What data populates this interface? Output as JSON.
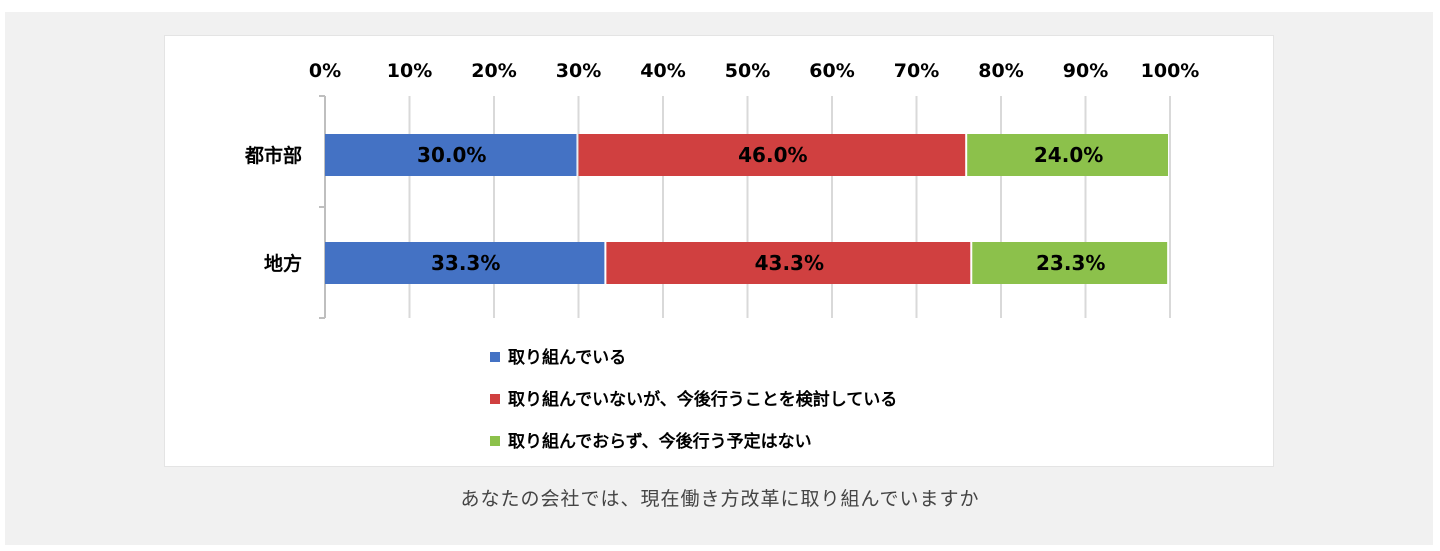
{
  "caption": "あなたの会社では、現在働き方改革に取り組んでいますか",
  "chart_data": {
    "type": "bar",
    "orientation": "horizontal",
    "stacked": true,
    "xlim": [
      0,
      100
    ],
    "x_tick_labels": [
      "0%",
      "10%",
      "20%",
      "30%",
      "40%",
      "50%",
      "60%",
      "70%",
      "80%",
      "90%",
      "100%"
    ],
    "x_axis_position": "top",
    "grid": true,
    "categories": [
      "都市部",
      "地方"
    ],
    "series": [
      {
        "name": "取り組んでいる",
        "color": "#4472c4",
        "values": [
          30.0,
          33.3
        ],
        "labels": [
          "30.0%",
          "33.3%"
        ]
      },
      {
        "name": "取り組んでいないが、今後行うことを検討している",
        "color": "#d04040",
        "values": [
          46.0,
          43.3
        ],
        "labels": [
          "46.0%",
          "43.3%"
        ]
      },
      {
        "name": "取り組んでおらず、今後行う予定はない",
        "color": "#8cc14b",
        "values": [
          24.0,
          23.3
        ],
        "labels": [
          "24.0%",
          "23.3%"
        ]
      }
    ],
    "legend_position": "bottom"
  }
}
